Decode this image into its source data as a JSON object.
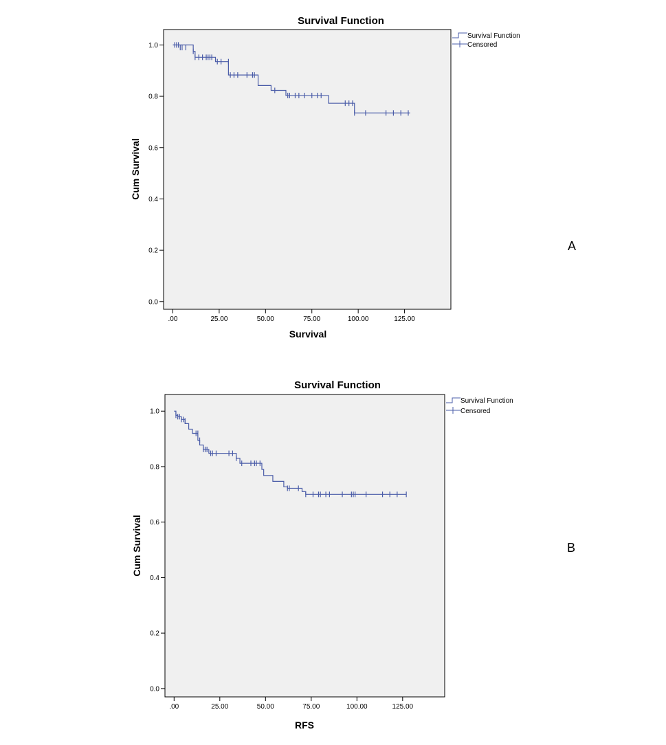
{
  "colors": {
    "line": "#4a5ca8",
    "plot_bg": "#f0f0f0",
    "frame": "#000000"
  },
  "chart_data": [
    {
      "type": "line",
      "panel": "A",
      "title": "Survival Function",
      "xlabel": "Survival",
      "ylabel": "Cum Survival",
      "xlim": [
        -5,
        150
      ],
      "ylim": [
        -0.03,
        1.06
      ],
      "xticks": [
        0,
        25,
        50,
        75,
        100,
        125
      ],
      "xtick_labels": [
        ".00",
        "25.00",
        "50.00",
        "75.00",
        "100.00",
        "125.00"
      ],
      "yticks": [
        0,
        0.2,
        0.4,
        0.6,
        0.8,
        1.0
      ],
      "ytick_labels": [
        "0.0",
        "0.2",
        "0.4",
        "0.6",
        "0.8",
        "1.0"
      ],
      "legend": {
        "position": "top-right-outside",
        "entries": [
          "Survival Function",
          "Censored"
        ]
      },
      "series": [
        {
          "name": "Survival Function",
          "steps": [
            [
              0,
              1.0
            ],
            [
              11,
              0.975
            ],
            [
              12,
              0.952
            ],
            [
              23,
              0.935
            ],
            [
              30,
              0.883
            ],
            [
              46,
              0.842
            ],
            [
              53,
              0.823
            ],
            [
              61,
              0.803
            ],
            [
              84,
              0.773
            ],
            [
              98,
              0.735
            ],
            [
              128,
              0.735
            ]
          ]
        },
        {
          "name": "Censored",
          "points": [
            [
              1,
              1.0
            ],
            [
              2,
              1.0
            ],
            [
              3,
              1.0
            ],
            [
              4,
              0.99
            ],
            [
              5,
              0.99
            ],
            [
              7,
              0.99
            ],
            [
              11,
              0.975
            ],
            [
              12,
              0.952
            ],
            [
              14,
              0.952
            ],
            [
              16,
              0.952
            ],
            [
              18,
              0.952
            ],
            [
              19,
              0.952
            ],
            [
              20,
              0.952
            ],
            [
              21,
              0.952
            ],
            [
              24,
              0.935
            ],
            [
              26,
              0.935
            ],
            [
              30,
              0.935
            ],
            [
              31,
              0.883
            ],
            [
              33,
              0.883
            ],
            [
              35,
              0.883
            ],
            [
              40,
              0.883
            ],
            [
              43,
              0.883
            ],
            [
              44,
              0.883
            ],
            [
              55,
              0.823
            ],
            [
              62,
              0.803
            ],
            [
              63,
              0.803
            ],
            [
              66,
              0.803
            ],
            [
              68,
              0.803
            ],
            [
              71,
              0.803
            ],
            [
              75,
              0.803
            ],
            [
              78,
              0.803
            ],
            [
              80,
              0.803
            ],
            [
              93,
              0.773
            ],
            [
              95,
              0.773
            ],
            [
              97,
              0.773
            ],
            [
              98,
              0.735
            ],
            [
              104,
              0.735
            ],
            [
              115,
              0.735
            ],
            [
              119,
              0.735
            ],
            [
              123,
              0.735
            ],
            [
              127,
              0.735
            ]
          ]
        }
      ]
    },
    {
      "type": "line",
      "panel": "B",
      "title": "Survival Function",
      "xlabel": "RFS",
      "ylabel": "Cum Survival",
      "xlim": [
        -5,
        148
      ],
      "ylim": [
        -0.03,
        1.06
      ],
      "xticks": [
        0,
        25,
        50,
        75,
        100,
        125
      ],
      "xtick_labels": [
        ".00",
        "25.00",
        "50.00",
        "75.00",
        "100.00",
        "125.00"
      ],
      "yticks": [
        0,
        0.2,
        0.4,
        0.6,
        0.8,
        1.0
      ],
      "ytick_labels": [
        "0.0",
        "0.2",
        "0.4",
        "0.6",
        "0.8",
        "1.0"
      ],
      "legend": {
        "position": "top-right-outside",
        "entries": [
          "Survival Function",
          "Censored"
        ]
      },
      "series": [
        {
          "name": "Survival Function",
          "steps": [
            [
              0,
              1.0
            ],
            [
              1,
              0.985
            ],
            [
              2,
              0.98
            ],
            [
              4,
              0.97
            ],
            [
              6,
              0.955
            ],
            [
              8,
              0.935
            ],
            [
              10,
              0.92
            ],
            [
              13,
              0.895
            ],
            [
              14,
              0.878
            ],
            [
              16,
              0.862
            ],
            [
              19,
              0.848
            ],
            [
              34,
              0.83
            ],
            [
              36,
              0.812
            ],
            [
              48,
              0.79
            ],
            [
              49,
              0.768
            ],
            [
              54,
              0.747
            ],
            [
              60,
              0.727
            ],
            [
              62,
              0.722
            ],
            [
              70,
              0.71
            ],
            [
              72,
              0.7
            ],
            [
              127,
              0.7
            ]
          ]
        },
        {
          "name": "Censored",
          "points": [
            [
              1,
              0.985
            ],
            [
              2,
              0.98
            ],
            [
              3,
              0.98
            ],
            [
              4,
              0.97
            ],
            [
              5,
              0.97
            ],
            [
              6,
              0.965
            ],
            [
              12,
              0.92
            ],
            [
              13,
              0.92
            ],
            [
              14,
              0.895
            ],
            [
              16,
              0.862
            ],
            [
              17,
              0.862
            ],
            [
              18,
              0.862
            ],
            [
              20,
              0.848
            ],
            [
              21,
              0.848
            ],
            [
              23,
              0.848
            ],
            [
              30,
              0.848
            ],
            [
              32,
              0.848
            ],
            [
              34,
              0.83
            ],
            [
              37,
              0.812
            ],
            [
              42,
              0.812
            ],
            [
              44,
              0.812
            ],
            [
              45,
              0.812
            ],
            [
              47,
              0.812
            ],
            [
              62,
              0.722
            ],
            [
              63,
              0.722
            ],
            [
              68,
              0.722
            ],
            [
              72,
              0.7
            ],
            [
              76,
              0.7
            ],
            [
              79,
              0.7
            ],
            [
              80,
              0.7
            ],
            [
              83,
              0.7
            ],
            [
              85,
              0.7
            ],
            [
              92,
              0.7
            ],
            [
              97,
              0.7
            ],
            [
              98,
              0.7
            ],
            [
              99,
              0.7
            ],
            [
              105,
              0.7
            ],
            [
              114,
              0.7
            ],
            [
              118,
              0.7
            ],
            [
              122,
              0.7
            ],
            [
              127,
              0.7
            ]
          ]
        }
      ]
    }
  ]
}
